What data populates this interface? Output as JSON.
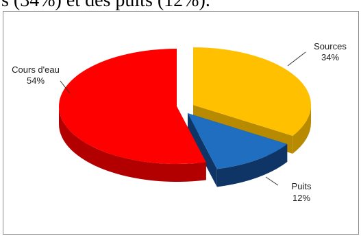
{
  "page": {
    "caption_fragment": "s (34%) et des puits (12%)."
  },
  "chart_data": {
    "type": "pie",
    "title": "",
    "slices": [
      {
        "label": "Sources",
        "value": 34,
        "value_text": "34%",
        "color": "#ffc000",
        "side_color": "#b88a00"
      },
      {
        "label": "Puits",
        "value": 12,
        "value_text": "12%",
        "color": "#1f6ec0",
        "side_color": "#0f3566"
      },
      {
        "label": "Cours d'eau",
        "value": 54,
        "value_text": "54%",
        "color": "#ff0000",
        "side_color": "#b20000"
      }
    ],
    "style": "3d-exploded",
    "legend": "none"
  }
}
